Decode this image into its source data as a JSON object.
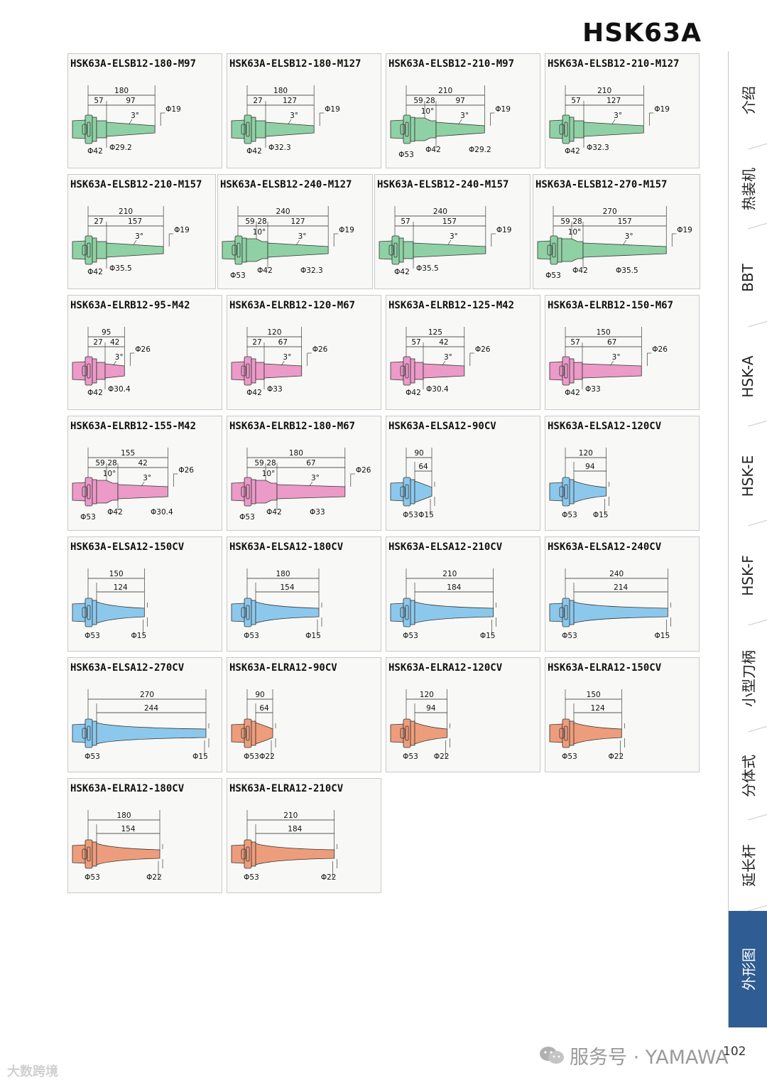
{
  "header": {
    "title": "HSK63A"
  },
  "colors": {
    "green": "#8fd1a5",
    "pink": "#ec9ac8",
    "blue": "#8cc8ec",
    "orange": "#ee9d7c",
    "tab_active": "#2f5c93"
  },
  "cards": [
    {
      "title": "HSK63A-ELSB12-180-M97",
      "kind": "elsb",
      "color": "green",
      "d_top": [
        "180",
        "57",
        "97"
      ],
      "phi_tip": "Φ19",
      "angle": "3°",
      "d_bottom": [
        "Φ42",
        "Φ29.2"
      ]
    },
    {
      "title": "HSK63A-ELSB12-180-M127",
      "kind": "elsb",
      "color": "green",
      "d_top": [
        "180",
        "27",
        "127"
      ],
      "phi_tip": "Φ19",
      "angle": "3°",
      "d_bottom": [
        "Φ42",
        "Φ32.3"
      ]
    },
    {
      "title": "HSK63A-ELSB12-210-M97",
      "kind": "elsb3",
      "color": "green",
      "d_top": [
        "210",
        "59",
        "28",
        "97"
      ],
      "angle2": "10°",
      "phi_tip": "Φ19",
      "angle": "3°",
      "d_bottom": [
        "Φ53",
        "Φ42",
        "Φ29.2"
      ]
    },
    {
      "title": "HSK63A-ELSB12-210-M127",
      "kind": "elsb",
      "color": "green",
      "d_top": [
        "210",
        "57",
        "127"
      ],
      "phi_tip": "Φ19",
      "angle": "3°",
      "d_bottom": [
        "Φ42",
        "Φ32.3"
      ]
    },
    {
      "title": "HSK63A-ELSB12-210-M157",
      "kind": "elsb",
      "color": "green",
      "d_top": [
        "210",
        "27",
        "157"
      ],
      "phi_tip": "Φ19",
      "angle": "3°",
      "d_bottom": [
        "Φ42",
        "Φ35.5"
      ]
    },
    {
      "title": "HSK63A-ELSB12-240-M127",
      "kind": "elsb3",
      "color": "green",
      "d_top": [
        "240",
        "59",
        "28",
        "127"
      ],
      "angle2": "10°",
      "phi_tip": "Φ19",
      "angle": "3°",
      "d_bottom": [
        "Φ53",
        "Φ42",
        "Φ32.3"
      ]
    },
    {
      "title": "HSK63A-ELSB12-240-M157",
      "kind": "elsb",
      "color": "green",
      "d_top": [
        "240",
        "57",
        "157"
      ],
      "phi_tip": "Φ19",
      "angle": "3°",
      "d_bottom": [
        "Φ42",
        "Φ35.5"
      ]
    },
    {
      "title": "HSK63A-ELSB12-270-M157",
      "kind": "elsb3",
      "color": "green",
      "d_top": [
        "270",
        "59",
        "28",
        "157"
      ],
      "angle2": "10°",
      "phi_tip": "Φ19",
      "angle": "3°",
      "d_bottom": [
        "Φ53",
        "Φ42",
        "Φ35.5"
      ]
    },
    {
      "title": "HSK63A-ELRB12-95-M42",
      "kind": "elrb",
      "color": "pink",
      "d_top": [
        "95",
        "27",
        "42"
      ],
      "phi_tip": "Φ26",
      "angle": "3°",
      "d_bottom": [
        "Φ42",
        "Φ30.4"
      ]
    },
    {
      "title": "HSK63A-ELRB12-120-M67",
      "kind": "elrb",
      "color": "pink",
      "d_top": [
        "120",
        "27",
        "67"
      ],
      "phi_tip": "Φ26",
      "angle": "3°",
      "d_bottom": [
        "Φ42",
        "Φ33"
      ]
    },
    {
      "title": "HSK63A-ELRB12-125-M42",
      "kind": "elrb",
      "color": "pink",
      "d_top": [
        "125",
        "57",
        "42"
      ],
      "phi_tip": "Φ26",
      "angle": "3°",
      "d_bottom": [
        "Φ42",
        "Φ30.4"
      ]
    },
    {
      "title": "HSK63A-ELRB12-150-M67",
      "kind": "elrb",
      "color": "pink",
      "d_top": [
        "150",
        "57",
        "67"
      ],
      "phi_tip": "Φ26",
      "angle": "3°",
      "d_bottom": [
        "Φ42",
        "Φ33"
      ]
    },
    {
      "title": "HSK63A-ELRB12-155-M42",
      "kind": "elrb3",
      "color": "pink",
      "d_top": [
        "155",
        "59",
        "28",
        "42"
      ],
      "angle2": "10°",
      "phi_tip": "Φ26",
      "angle": "3°",
      "d_bottom": [
        "Φ53",
        "Φ42",
        "Φ30.4"
      ]
    },
    {
      "title": "HSK63A-ELRB12-180-M67",
      "kind": "elrb3",
      "color": "pink",
      "d_top": [
        "180",
        "59",
        "28",
        "67"
      ],
      "angle2": "10°",
      "phi_tip": "Φ26",
      "angle": "3°",
      "d_bottom": [
        "Φ53",
        "Φ42",
        "Φ33"
      ]
    },
    {
      "title": "HSK63A-ELSA12-90CV",
      "kind": "cone",
      "color": "blue",
      "d_top": [
        "90",
        "64"
      ],
      "d_bottom": [
        "Φ53",
        "Φ15"
      ]
    },
    {
      "title": "HSK63A-ELSA12-120CV",
      "kind": "cone",
      "color": "blue",
      "d_top": [
        "120",
        "94"
      ],
      "d_bottom": [
        "Φ53",
        "Φ15"
      ]
    },
    {
      "title": "HSK63A-ELSA12-150CV",
      "kind": "cone",
      "color": "blue",
      "d_top": [
        "150",
        "124"
      ],
      "d_bottom": [
        "Φ53",
        "Φ15"
      ]
    },
    {
      "title": "HSK63A-ELSA12-180CV",
      "kind": "cone",
      "color": "blue",
      "d_top": [
        "180",
        "154"
      ],
      "d_bottom": [
        "Φ53",
        "Φ15"
      ]
    },
    {
      "title": "HSK63A-ELSA12-210CV",
      "kind": "cone",
      "color": "blue",
      "d_top": [
        "210",
        "184"
      ],
      "d_bottom": [
        "Φ53",
        "Φ15"
      ]
    },
    {
      "title": "HSK63A-ELSA12-240CV",
      "kind": "cone",
      "color": "blue",
      "d_top": [
        "240",
        "214"
      ],
      "d_bottom": [
        "Φ53",
        "Φ15"
      ]
    },
    {
      "title": "HSK63A-ELSA12-270CV",
      "kind": "cone",
      "color": "blue",
      "d_top": [
        "270",
        "244"
      ],
      "d_bottom": [
        "Φ53",
        "Φ15"
      ]
    },
    {
      "title": "HSK63A-ELRA12-90CV",
      "kind": "cone",
      "color": "orange",
      "d_top": [
        "90",
        "64"
      ],
      "d_bottom": [
        "Φ53",
        "Φ22"
      ]
    },
    {
      "title": "HSK63A-ELRA12-120CV",
      "kind": "cone",
      "color": "orange",
      "d_top": [
        "120",
        "94"
      ],
      "d_bottom": [
        "Φ53",
        "Φ22"
      ]
    },
    {
      "title": "HSK63A-ELRA12-150CV",
      "kind": "cone",
      "color": "orange",
      "d_top": [
        "150",
        "124"
      ],
      "d_bottom": [
        "Φ53",
        "Φ22"
      ]
    },
    {
      "title": "HSK63A-ELRA12-180CV",
      "kind": "cone",
      "color": "orange",
      "d_top": [
        "180",
        "154"
      ],
      "d_bottom": [
        "Φ53",
        "Φ22"
      ]
    },
    {
      "title": "HSK63A-ELRA12-210CV",
      "kind": "cone",
      "color": "orange",
      "d_top": [
        "210",
        "184"
      ],
      "d_bottom": [
        "Φ53",
        "Φ22"
      ]
    }
  ],
  "side_tabs": [
    {
      "label": "介绍",
      "active": false
    },
    {
      "label": "热装机",
      "active": false
    },
    {
      "label": "BBT",
      "active": false
    },
    {
      "label": "HSK-A",
      "active": false
    },
    {
      "label": "HSK-E",
      "active": false
    },
    {
      "label": "HSK-F",
      "active": false
    },
    {
      "label": "小型刀柄",
      "active": false
    },
    {
      "label": "分体式",
      "active": false
    },
    {
      "label": "延长杆",
      "active": false
    },
    {
      "label": "外形图",
      "active": true
    }
  ],
  "footer": {
    "page_number": "102",
    "watermark": "服务号 · YAMAWA",
    "corner_mark": "大数跨境"
  }
}
